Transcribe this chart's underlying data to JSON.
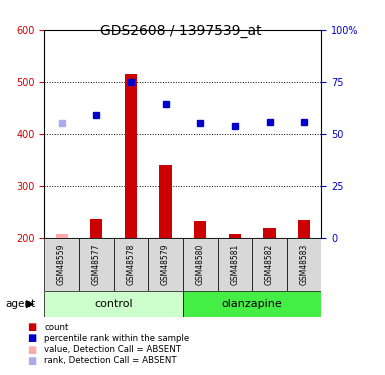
{
  "title": "GDS2608 / 1397539_at",
  "samples": [
    "GSM48559",
    "GSM48577",
    "GSM48578",
    "GSM48579",
    "GSM48580",
    "GSM48581",
    "GSM48582",
    "GSM48583"
  ],
  "groups": [
    "control",
    "control",
    "control",
    "control",
    "olanzapine",
    "olanzapine",
    "olanzapine",
    "olanzapine"
  ],
  "bar_values": [
    207,
    237,
    515,
    340,
    232,
    207,
    220,
    235
  ],
  "rank_values": [
    422,
    437,
    500,
    458,
    421,
    415,
    424,
    424
  ],
  "absent_mask": [
    true,
    false,
    false,
    false,
    false,
    false,
    false,
    false
  ],
  "bar_color": "#cc0000",
  "bar_absent_color": "#ffaaaa",
  "rank_color": "#0000cc",
  "rank_absent_color": "#aaaaee",
  "ylim_left": [
    200,
    600
  ],
  "ylim_right": [
    0,
    100
  ],
  "yticks_left": [
    200,
    300,
    400,
    500,
    600
  ],
  "yticks_right": [
    0,
    25,
    50,
    75,
    100
  ],
  "group_colors": {
    "control": "#ccffcc",
    "olanzapine": "#44ee44"
  },
  "bar_width": 0.35,
  "title_fontsize": 10,
  "tick_fontsize": 7,
  "left_axis_color": "#cc0000",
  "right_axis_color": "#0000cc"
}
